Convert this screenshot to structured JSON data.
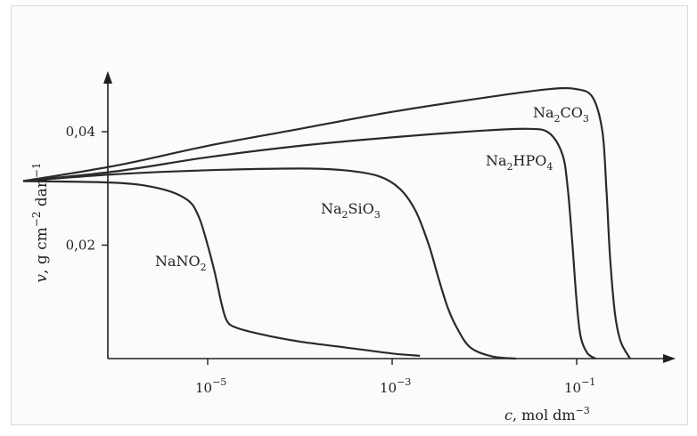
{
  "chart_data": {
    "type": "line",
    "title": "",
    "xlabel": {
      "var": "c",
      "rest": ", mol dm",
      "exp": "−3"
    },
    "ylabel": {
      "var": "v",
      "part1": ", g cm",
      "exp1": "−2",
      "part2": " dan",
      "exp2": "−1"
    },
    "x_scale": "log",
    "xlim": [
      1e-07,
      1.5
    ],
    "ylim": [
      0,
      0.052
    ],
    "x_ticks": [
      {
        "value": 1e-05,
        "base": "10",
        "exp": "−5"
      },
      {
        "value": 0.001,
        "base": "10",
        "exp": "−3"
      },
      {
        "value": 0.1,
        "base": "10",
        "exp": "−1"
      }
    ],
    "y_ticks": [
      {
        "value": 0.02,
        "label": "0,02"
      },
      {
        "value": 0.04,
        "label": "0,04"
      }
    ],
    "grid": false,
    "series": [
      {
        "name": "NaNO2",
        "label": {
          "base": "NaNO",
          "sub": "2"
        },
        "x": [
          1e-07,
          1e-06,
          3e-06,
          6e-06,
          8e-06,
          1e-05,
          1.2e-05,
          1.4e-05,
          1.6e-05,
          2e-05,
          4e-05,
          0.0001,
          0.0003,
          0.001,
          0.002
        ],
        "y": [
          0.0313,
          0.031,
          0.03,
          0.028,
          0.025,
          0.02,
          0.015,
          0.01,
          0.0068,
          0.0055,
          0.0042,
          0.003,
          0.002,
          0.0009,
          0.0005
        ]
      },
      {
        "name": "Na2SiO3",
        "label": {
          "parts": [
            {
              "t": "Na"
            },
            {
              "t": "2",
              "sub": true
            },
            {
              "t": "SiO"
            },
            {
              "t": "3",
              "sub": true
            }
          ]
        },
        "x": [
          1e-07,
          1e-06,
          1e-05,
          0.0001,
          0.0003,
          0.0007,
          0.0012,
          0.0018,
          0.0025,
          0.0032,
          0.004,
          0.005,
          0.007,
          0.012,
          0.022
        ],
        "y": [
          0.0313,
          0.0325,
          0.0332,
          0.0335,
          0.0332,
          0.0322,
          0.03,
          0.026,
          0.02,
          0.014,
          0.009,
          0.0055,
          0.002,
          0.0004,
          0.0
        ],
        "labels": {}
      },
      {
        "name": "Na2HPO4",
        "label": {
          "parts": [
            {
              "t": "Na"
            },
            {
              "t": "2",
              "sub": true
            },
            {
              "t": "HPO"
            },
            {
              "t": "4",
              "sub": true
            }
          ]
        },
        "x": [
          1e-07,
          1e-06,
          1e-05,
          0.0001,
          0.001,
          0.01,
          0.03,
          0.05,
          0.07,
          0.08,
          0.09,
          0.1,
          0.11,
          0.13,
          0.16
        ],
        "y": [
          0.0313,
          0.033,
          0.0355,
          0.0375,
          0.039,
          0.0402,
          0.0405,
          0.0398,
          0.036,
          0.03,
          0.02,
          0.01,
          0.004,
          0.001,
          0.0
        ]
      },
      {
        "name": "Na2CO3",
        "label": {
          "parts": [
            {
              "t": "Na"
            },
            {
              "t": "2",
              "sub": true
            },
            {
              "t": "CO"
            },
            {
              "t": "3",
              "sub": true
            }
          ]
        },
        "x": [
          1e-07,
          1e-06,
          1e-05,
          0.0001,
          0.001,
          0.01,
          0.05,
          0.1,
          0.15,
          0.19,
          0.21,
          0.23,
          0.26,
          0.3,
          0.38
        ],
        "y": [
          0.0313,
          0.034,
          0.0375,
          0.0405,
          0.0435,
          0.046,
          0.0475,
          0.0475,
          0.046,
          0.04,
          0.03,
          0.018,
          0.008,
          0.003,
          0.0
        ]
      }
    ]
  }
}
